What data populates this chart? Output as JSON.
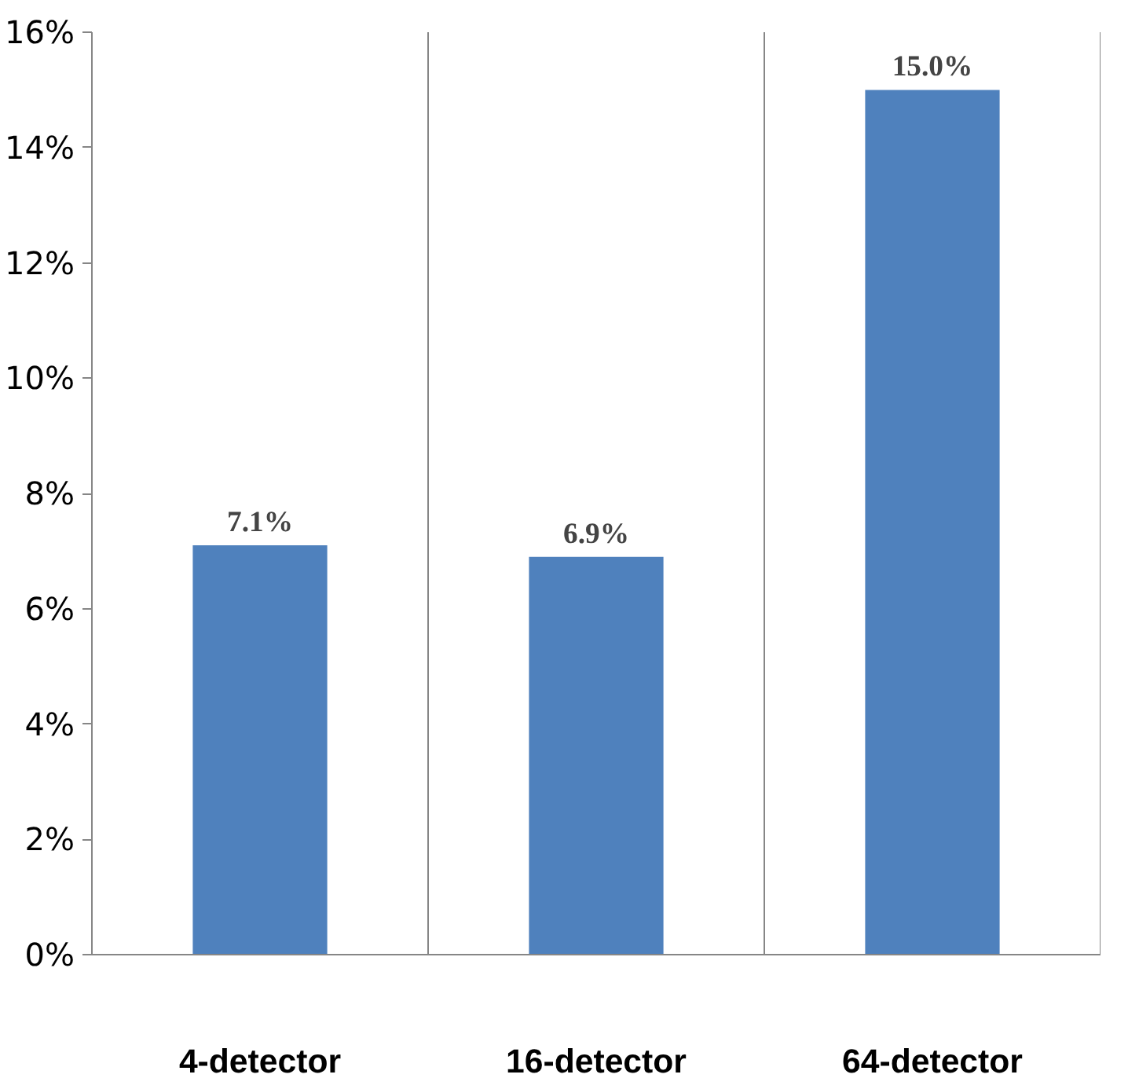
{
  "chart_data": {
    "type": "bar",
    "categories": [
      "4-detector",
      "16-detector",
      "64-detector"
    ],
    "values": [
      7.1,
      6.9,
      15.0
    ],
    "color": "#4f81bd",
    "value_labels": [
      "7.1%",
      "6.9%",
      "15.0%"
    ],
    "ylim": [
      0,
      16
    ],
    "yticks": [
      {
        "value": 0,
        "label": "0%"
      },
      {
        "value": 2,
        "label": "2%"
      },
      {
        "value": 4,
        "label": "4%"
      },
      {
        "value": 6,
        "label": "6%"
      },
      {
        "value": 8,
        "label": "8%"
      },
      {
        "value": 10,
        "label": "10%"
      },
      {
        "value": 12,
        "label": "12%"
      },
      {
        "value": 14,
        "label": "14%"
      },
      {
        "value": 16,
        "label": "16%"
      }
    ],
    "grid": "x"
  }
}
